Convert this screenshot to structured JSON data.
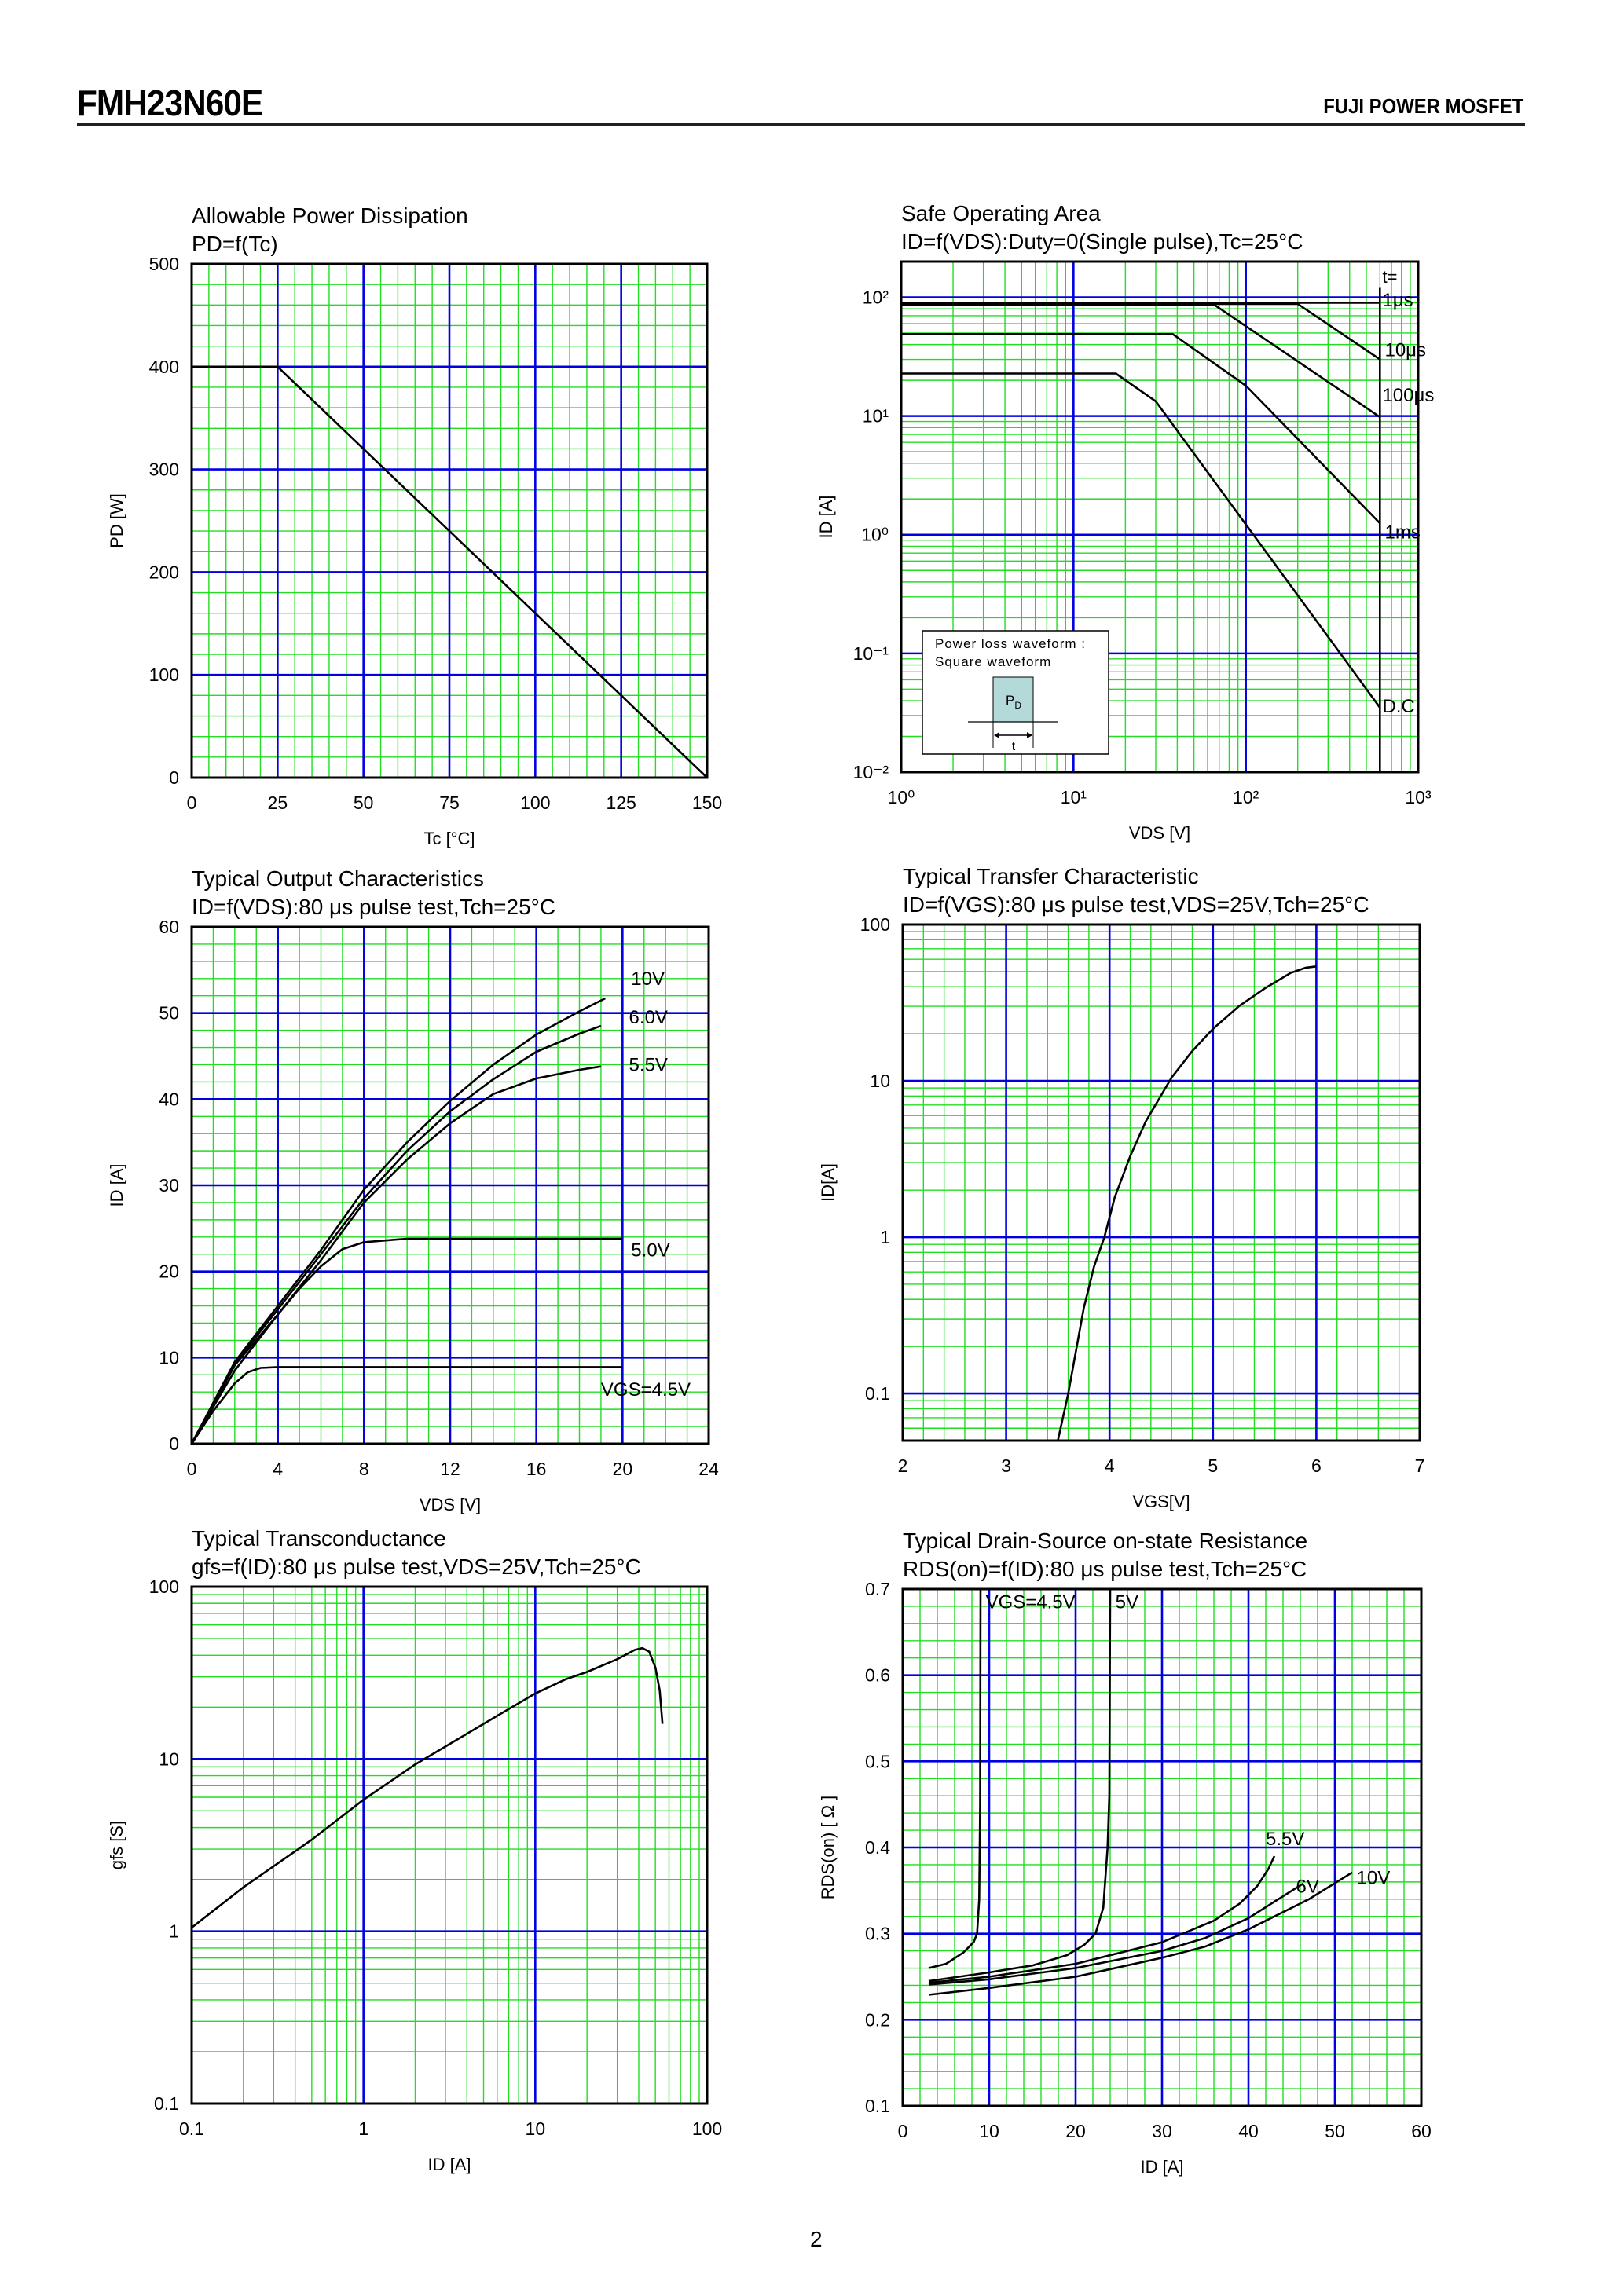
{
  "header": {
    "part_number": "FMH23N60E",
    "brand": "FUJI POWER MOSFET"
  },
  "page_number": "2",
  "colors": {
    "major_grid": "#0000e0",
    "minor_grid": "#22dd22",
    "curve": "#000000",
    "inset_pulse": "#b3d9d9"
  },
  "chart_data": [
    {
      "type": "line",
      "title": "Allowable Power Dissipation",
      "subtitle": "PD=f(Tc)",
      "xlabel": "Tc [°C]",
      "ylabel": "PD [W]",
      "xscale": "linear",
      "yscale": "linear",
      "xlim": [
        0,
        150
      ],
      "ylim": [
        0,
        500
      ],
      "xticks": [
        0,
        25,
        50,
        75,
        100,
        125,
        150
      ],
      "xtick_labels": [
        "0",
        "25",
        "50",
        "75",
        "100",
        "125",
        "150"
      ],
      "yticks": [
        0,
        100,
        200,
        300,
        400,
        500
      ],
      "ytick_labels": [
        "0",
        "100",
        "200",
        "300",
        "400",
        "500"
      ],
      "grid": true,
      "series": [
        {
          "points": [
            [
              0,
              400
            ],
            [
              25,
              400
            ],
            [
              150,
              0
            ]
          ]
        }
      ]
    },
    {
      "type": "line",
      "title": "Safe Operating Area",
      "subtitle": "ID=f(VDS):Duty=0(Single pulse),Tc=25°C",
      "xlabel": "VDS [V]",
      "ylabel": "ID [A]",
      "xscale": "log",
      "yscale": "log",
      "xlim": [
        1,
        1000
      ],
      "ylim": [
        0.01,
        200
      ],
      "xticks": [
        1,
        10,
        100,
        1000
      ],
      "xtick_labels": [
        "10⁰",
        "10¹",
        "10²",
        "10³"
      ],
      "yticks": [
        0.01,
        0.1,
        1,
        10,
        100
      ],
      "ytick_labels": [
        "10⁻²",
        "10⁻¹",
        "10⁰",
        "10¹",
        "10²"
      ],
      "grid": true,
      "legend_header": "t=",
      "series": [
        {
          "name": "1μs",
          "points": [
            [
              1,
              90
            ],
            [
              600,
              90
            ]
          ]
        },
        {
          "name": "10μs",
          "points": [
            [
              1,
              88
            ],
            [
              200,
              88
            ],
            [
              600,
              30
            ]
          ]
        },
        {
          "name": "100μs",
          "points": [
            [
              1,
              86
            ],
            [
              66,
              86
            ],
            [
              600,
              9.8
            ]
          ]
        },
        {
          "name": "1ms",
          "points": [
            [
              1,
              49
            ],
            [
              37.6,
              49
            ],
            [
              100,
              18
            ],
            [
              600,
              1.25
            ]
          ]
        },
        {
          "name": "D.C.",
          "points": [
            [
              1,
              22.8
            ],
            [
              17.6,
              22.8
            ],
            [
              30,
              13.3
            ],
            [
              600,
              0.035
            ]
          ]
        },
        {
          "points": [
            [
              600,
              0.01
            ],
            [
              600,
              120
            ]
          ]
        }
      ],
      "inset": {
        "line1": "Power loss waveform :",
        "line2": "Square waveform",
        "pulse_label": "P",
        "pulse_subscript": "D",
        "width_label": "t"
      }
    },
    {
      "type": "line",
      "title": "Typical Output Characteristics",
      "subtitle": "ID=f(VDS):80 μs pulse test,Tch=25°C",
      "xlabel": "VDS [V]",
      "ylabel": "ID [A]",
      "xscale": "linear",
      "yscale": "linear",
      "xlim": [
        0,
        24
      ],
      "ylim": [
        0,
        60
      ],
      "xticks": [
        0,
        4,
        8,
        12,
        16,
        20,
        24
      ],
      "xtick_labels": [
        "0",
        "4",
        "8",
        "12",
        "16",
        "20",
        "24"
      ],
      "yticks": [
        0,
        10,
        20,
        30,
        40,
        50,
        60
      ],
      "ytick_labels": [
        "0",
        "10",
        "20",
        "30",
        "40",
        "50",
        "60"
      ],
      "grid": true,
      "series": [
        {
          "name": "10V",
          "points": [
            [
              0,
              0
            ],
            [
              2,
              9.5
            ],
            [
              4,
              16
            ],
            [
              6,
              22.5
            ],
            [
              8,
              29.5
            ],
            [
              10,
              35
            ],
            [
              12,
              39.8
            ],
            [
              14,
              44
            ],
            [
              16,
              47.5
            ],
            [
              18,
              50.2
            ],
            [
              19.2,
              51.7
            ]
          ]
        },
        {
          "name": "6.0V",
          "points": [
            [
              0,
              0
            ],
            [
              2,
              9.3
            ],
            [
              4,
              15.6
            ],
            [
              6,
              22
            ],
            [
              8,
              28.5
            ],
            [
              10,
              34
            ],
            [
              12,
              38.6
            ],
            [
              14,
              42.3
            ],
            [
              16,
              45.5
            ],
            [
              18,
              47.6
            ],
            [
              19,
              48.5
            ]
          ]
        },
        {
          "name": "5.5V",
          "points": [
            [
              0,
              0
            ],
            [
              2,
              9.1
            ],
            [
              4,
              15
            ],
            [
              6,
              21.3
            ],
            [
              8,
              28
            ],
            [
              10,
              33
            ],
            [
              12,
              37.2
            ],
            [
              14,
              40.6
            ],
            [
              16,
              42.4
            ],
            [
              18,
              43.4
            ],
            [
              19,
              43.8
            ]
          ]
        },
        {
          "name": "5.0V",
          "points": [
            [
              0,
              0
            ],
            [
              2,
              8.5
            ],
            [
              4,
              15
            ],
            [
              5,
              18
            ],
            [
              6,
              20.6
            ],
            [
              7,
              22.6
            ],
            [
              8,
              23.4
            ],
            [
              10,
              23.8
            ],
            [
              20,
              23.8
            ]
          ]
        },
        {
          "name": "VGS=4.5V",
          "points": [
            [
              0,
              0
            ],
            [
              1,
              3.8
            ],
            [
              2,
              7
            ],
            [
              2.6,
              8.3
            ],
            [
              3.2,
              8.8
            ],
            [
              4,
              8.9
            ],
            [
              20,
              8.9
            ]
          ]
        }
      ]
    },
    {
      "type": "line",
      "title": "Typical Transfer Characteristic",
      "subtitle": "ID=f(VGS):80 μs pulse test,VDS=25V,Tch=25°C",
      "xlabel": "VGS[V]",
      "ylabel": "ID[A]",
      "xscale": "linear",
      "yscale": "log",
      "xlim": [
        2,
        7
      ],
      "ylim": [
        0.05,
        100
      ],
      "xticks": [
        2,
        3,
        4,
        5,
        6,
        7
      ],
      "xtick_labels": [
        "2",
        "3",
        "4",
        "5",
        "6",
        "7"
      ],
      "yticks": [
        0.1,
        1,
        10,
        100
      ],
      "ytick_labels": [
        "0.1",
        "1",
        "10",
        "100"
      ],
      "grid": true,
      "series": [
        {
          "points": [
            [
              3.5,
              0.05
            ],
            [
              3.6,
              0.1
            ],
            [
              3.75,
              0.35
            ],
            [
              3.85,
              0.65
            ],
            [
              3.95,
              1
            ],
            [
              4.05,
              1.8
            ],
            [
              4.2,
              3.3
            ],
            [
              4.35,
              5.5
            ],
            [
              4.6,
              10.5
            ],
            [
              4.8,
              15.5
            ],
            [
              5,
              21.5
            ],
            [
              5.25,
              30
            ],
            [
              5.5,
              39
            ],
            [
              5.75,
              49
            ],
            [
              5.9,
              53
            ],
            [
              6,
              54
            ]
          ]
        }
      ]
    },
    {
      "type": "line",
      "title": "Typical Transconductance",
      "subtitle": "gfs=f(ID):80 μs pulse test,VDS=25V,Tch=25°C",
      "xlabel": "ID [A]",
      "ylabel": "gfs [S]",
      "xscale": "log",
      "yscale": "log",
      "xlim": [
        0.1,
        100
      ],
      "ylim": [
        0.1,
        100
      ],
      "xticks": [
        0.1,
        1,
        10,
        100
      ],
      "xtick_labels": [
        "0.1",
        "1",
        "10",
        "100"
      ],
      "yticks": [
        0.1,
        1,
        10,
        100
      ],
      "ytick_labels": [
        "0.1",
        "1",
        "10",
        "100"
      ],
      "grid": true,
      "series": [
        {
          "points": [
            [
              0.1,
              1.05
            ],
            [
              0.2,
              1.8
            ],
            [
              0.5,
              3.4
            ],
            [
              1,
              5.8
            ],
            [
              2,
              9.3
            ],
            [
              5,
              16
            ],
            [
              10,
              24
            ],
            [
              15,
              29
            ],
            [
              20,
              32
            ],
            [
              30,
              38
            ],
            [
              38,
              43
            ],
            [
              42,
              44
            ],
            [
              46,
              42
            ],
            [
              50,
              34
            ],
            [
              53,
              25
            ],
            [
              55,
              16
            ]
          ]
        }
      ]
    },
    {
      "type": "line",
      "title": "Typical Drain-Source on-state Resistance",
      "subtitle": "RDS(on)=f(ID):80 μs pulse test,Tch=25°C",
      "xlabel": "ID [A]",
      "ylabel": "RDS(on) [ Ω ]",
      "xscale": "linear",
      "yscale": "linear",
      "xlim": [
        0,
        60
      ],
      "ylim": [
        0.1,
        0.7
      ],
      "xticks": [
        0,
        10,
        20,
        30,
        40,
        50,
        60
      ],
      "xtick_labels": [
        "0",
        "10",
        "20",
        "30",
        "40",
        "50",
        "60"
      ],
      "yticks": [
        0.1,
        0.2,
        0.3,
        0.4,
        0.5,
        0.6,
        0.7
      ],
      "ytick_labels": [
        "0.1",
        "0.2",
        "0.3",
        "0.4",
        "0.5",
        "0.6",
        "0.7"
      ],
      "grid": true,
      "series": [
        {
          "name": "VGS=4.5V",
          "points": [
            [
              3,
              0.26
            ],
            [
              5,
              0.265
            ],
            [
              7,
              0.278
            ],
            [
              8.2,
              0.29
            ],
            [
              8.6,
              0.3
            ],
            [
              8.85,
              0.34
            ],
            [
              8.95,
              0.45
            ],
            [
              9,
              0.7
            ]
          ]
        },
        {
          "name": "5V",
          "points": [
            [
              3,
              0.245
            ],
            [
              10,
              0.255
            ],
            [
              15,
              0.263
            ],
            [
              19,
              0.275
            ],
            [
              21,
              0.287
            ],
            [
              22.3,
              0.3
            ],
            [
              23.2,
              0.33
            ],
            [
              23.7,
              0.4
            ],
            [
              23.9,
              0.46
            ],
            [
              24,
              0.7
            ]
          ]
        },
        {
          "name": "5.5V",
          "points": [
            [
              3,
              0.243
            ],
            [
              10,
              0.25
            ],
            [
              20,
              0.265
            ],
            [
              30,
              0.29
            ],
            [
              36,
              0.315
            ],
            [
              39,
              0.335
            ],
            [
              41,
              0.355
            ],
            [
              42.3,
              0.375
            ],
            [
              43,
              0.39
            ]
          ]
        },
        {
          "name": "6V",
          "points": [
            [
              3,
              0.241
            ],
            [
              10,
              0.247
            ],
            [
              20,
              0.26
            ],
            [
              30,
              0.28
            ],
            [
              35,
              0.295
            ],
            [
              40,
              0.318
            ],
            [
              46.3,
              0.358
            ]
          ]
        },
        {
          "name": "10V",
          "points": [
            [
              3,
              0.229
            ],
            [
              10,
              0.237
            ],
            [
              20,
              0.25
            ],
            [
              30,
              0.272
            ],
            [
              35,
              0.285
            ],
            [
              40,
              0.305
            ],
            [
              47,
              0.34
            ],
            [
              52,
              0.371
            ]
          ]
        }
      ]
    }
  ]
}
